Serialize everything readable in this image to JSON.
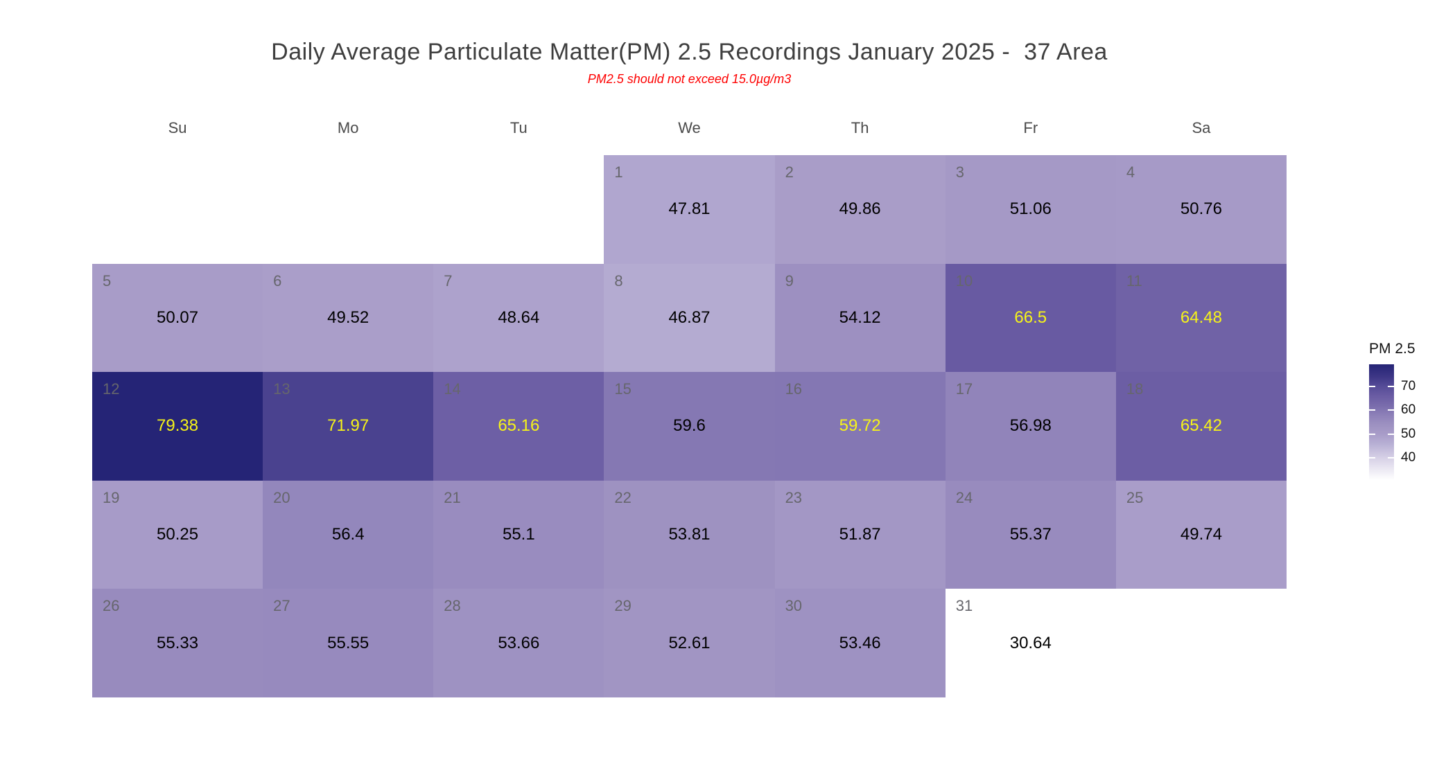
{
  "chart_data": {
    "type": "heatmap",
    "title": "Daily Average Particulate Matter(PM) 2.5 Recordings January 2025 -  37 Area",
    "subtitle": "PM2.5 should not exceed 15.0µg/m3",
    "month": "January 2025",
    "area": "37 Area",
    "unit": "µg/m3",
    "weekday_labels": [
      "Su",
      "Mo",
      "Tu",
      "We",
      "Th",
      "Fr",
      "Sa"
    ],
    "first_day_column": 3,
    "value_domain": [
      30.64,
      79.38
    ],
    "legend": {
      "title": "PM 2.5",
      "ticks": [
        70,
        60,
        50,
        40
      ]
    },
    "days": [
      {
        "day": 1,
        "value": 47.81,
        "highlight": false
      },
      {
        "day": 2,
        "value": 49.86,
        "highlight": false
      },
      {
        "day": 3,
        "value": 51.06,
        "highlight": false
      },
      {
        "day": 4,
        "value": 50.76,
        "highlight": false
      },
      {
        "day": 5,
        "value": 50.07,
        "highlight": false
      },
      {
        "day": 6,
        "value": 49.52,
        "highlight": false
      },
      {
        "day": 7,
        "value": 48.64,
        "highlight": false
      },
      {
        "day": 8,
        "value": 46.87,
        "highlight": false
      },
      {
        "day": 9,
        "value": 54.12,
        "highlight": false
      },
      {
        "day": 10,
        "value": 66.5,
        "highlight": true
      },
      {
        "day": 11,
        "value": 64.48,
        "highlight": true
      },
      {
        "day": 12,
        "value": 79.38,
        "highlight": true
      },
      {
        "day": 13,
        "value": 71.97,
        "highlight": true
      },
      {
        "day": 14,
        "value": 65.16,
        "highlight": true
      },
      {
        "day": 15,
        "value": 59.6,
        "highlight": false
      },
      {
        "day": 16,
        "value": 59.72,
        "highlight": true
      },
      {
        "day": 17,
        "value": 56.98,
        "highlight": false
      },
      {
        "day": 18,
        "value": 65.42,
        "highlight": true
      },
      {
        "day": 19,
        "value": 50.25,
        "highlight": false
      },
      {
        "day": 20,
        "value": 56.4,
        "highlight": false
      },
      {
        "day": 21,
        "value": 55.1,
        "highlight": false
      },
      {
        "day": 22,
        "value": 53.81,
        "highlight": false
      },
      {
        "day": 23,
        "value": 51.87,
        "highlight": false
      },
      {
        "day": 24,
        "value": 55.37,
        "highlight": false
      },
      {
        "day": 25,
        "value": 49.74,
        "highlight": false
      },
      {
        "day": 26,
        "value": 55.33,
        "highlight": false
      },
      {
        "day": 27,
        "value": 55.55,
        "highlight": false
      },
      {
        "day": 28,
        "value": 53.66,
        "highlight": false
      },
      {
        "day": 29,
        "value": 52.61,
        "highlight": false
      },
      {
        "day": 30,
        "value": 53.46,
        "highlight": false
      },
      {
        "day": 31,
        "value": 30.64,
        "highlight": false
      }
    ],
    "color_scale": {
      "stops": [
        [
          30.64,
          "#ffffff"
        ],
        [
          40.0,
          "#d6d0e6"
        ],
        [
          46.0,
          "#b7afd4"
        ],
        [
          50.0,
          "#a89cc8"
        ],
        [
          54.0,
          "#9d91c1"
        ],
        [
          58.0,
          "#8d80b8"
        ],
        [
          62.0,
          "#796cac"
        ],
        [
          66.0,
          "#6a5ca3"
        ],
        [
          70.0,
          "#564c98"
        ],
        [
          74.0,
          "#3e3786"
        ],
        [
          79.38,
          "#252476"
        ]
      ]
    }
  },
  "colors": {
    "value_text": "#000000",
    "value_text_highlight": "#f7f418",
    "day_number": "#66666c",
    "weekday_label": "#4a4a4a",
    "title_text": "#3e3e3e",
    "subtitle_text": "#fe0000",
    "background": "#ffffff"
  }
}
